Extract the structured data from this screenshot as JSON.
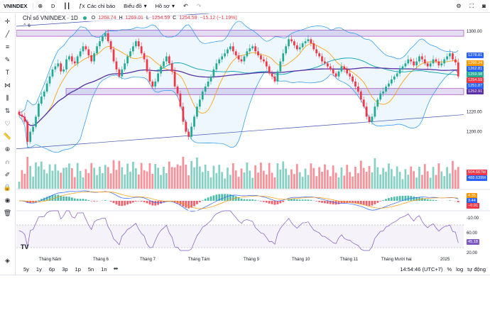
{
  "toolbar": {
    "symbol": "VNINDEX",
    "interval": "D",
    "indicators_label": "Các chỉ báo",
    "chart_type_label": "Biểu đồ",
    "profile_label": "Hồ sơ"
  },
  "legend": {
    "title": "Chỉ số VNINDEX · 1D",
    "open_label": "O",
    "open": "1268.74",
    "high_label": "H",
    "high": "1269.01",
    "low_label": "L",
    "low": "1254.59",
    "close_label": "C",
    "close": "1254.59",
    "change": "−15.12 (−1.19%)",
    "indicator_count": "6"
  },
  "price_axis": {
    "ticks": [
      "1300.00",
      "1260.00",
      "1240.00",
      "1220.00",
      "1200.00"
    ],
    "macd_ticks": [
      "-10.00"
    ],
    "rsi_ticks": [
      "60.00",
      "20.00"
    ],
    "labels": [
      {
        "text": "1278.81",
        "color": "#2962ff"
      },
      {
        "text": "1266.34",
        "color": "#ff9800"
      },
      {
        "text": "1262.81",
        "color": "#2962ff"
      },
      {
        "text": "1259.98",
        "color": "#22ab94"
      },
      {
        "text": "1254.59",
        "color": "#f23645"
      },
      {
        "text": "1251.87",
        "color": "#2962ff"
      },
      {
        "text": "1252.91",
        "color": "#5b2fa5"
      },
      {
        "text": "504.667M",
        "color": "#f23645"
      },
      {
        "text": "488.639M",
        "color": "#2962ff"
      },
      {
        "text": "4.35",
        "color": "#ff9800"
      },
      {
        "text": "3.44",
        "color": "#2962ff"
      },
      {
        "text": "−0.91",
        "color": "#f23645"
      },
      {
        "text": "45.18",
        "color": "#7e57c2"
      }
    ]
  },
  "time_axis": [
    "Tháng Năm",
    "Tháng 6",
    "Tháng 7",
    "Tháng Tám",
    "Tháng 9",
    "Tháng 10",
    "Tháng 11",
    "Tháng Mười hai",
    "2025"
  ],
  "timeframes": [
    "5y",
    "1y",
    "6p",
    "3p",
    "1p",
    "5n",
    "1n"
  ],
  "status": {
    "clock": "14:54:46 (UTC+7)",
    "percent": "%",
    "log": "log",
    "auto": "tự động"
  },
  "colors": {
    "up": "#22ab94",
    "down": "#f23645",
    "ma_orange": "#ff9800",
    "ma_teal": "#00a5b5",
    "ma_purple": "#5b2fa5",
    "band": "#2196f3",
    "zone": "#d1c4e9"
  },
  "chart_data": {
    "type": "candlestick",
    "title": "Chỉ số VNINDEX · 1D",
    "ylim": [
      1180,
      1312
    ],
    "resistance_zone": [
      1295,
      1301
    ],
    "support_zone": [
      1237,
      1243
    ],
    "closes": [
      1217,
      1215,
      1210,
      1190,
      1200,
      1205,
      1215,
      1228,
      1235,
      1240,
      1248,
      1255,
      1262,
      1265,
      1268,
      1260,
      1262,
      1272,
      1275,
      1270,
      1268,
      1275,
      1280,
      1285,
      1282,
      1276,
      1270,
      1278,
      1285,
      1290,
      1295,
      1298,
      1290,
      1282,
      1270,
      1262,
      1255,
      1262,
      1268,
      1275,
      1280,
      1285,
      1290,
      1285,
      1278,
      1272,
      1260,
      1250,
      1245,
      1250,
      1258,
      1265,
      1270,
      1275,
      1268,
      1260,
      1245,
      1238,
      1225,
      1210,
      1200,
      1195,
      1205,
      1215,
      1225,
      1232,
      1240,
      1245,
      1250,
      1255,
      1262,
      1268,
      1272,
      1275,
      1278,
      1282,
      1285,
      1280,
      1276,
      1272,
      1270,
      1275,
      1280,
      1283,
      1285,
      1280,
      1276,
      1272,
      1270,
      1265,
      1258,
      1255,
      1250,
      1260,
      1270,
      1278,
      1285,
      1292,
      1290,
      1286,
      1282,
      1284,
      1288,
      1290,
      1292,
      1288,
      1282,
      1278,
      1275,
      1270,
      1268,
      1265,
      1262,
      1258,
      1255,
      1260,
      1265,
      1262,
      1258,
      1255,
      1250,
      1245,
      1240,
      1232,
      1225,
      1215,
      1210,
      1215,
      1225,
      1232,
      1238,
      1240,
      1245,
      1248,
      1252,
      1255,
      1258,
      1262,
      1265,
      1268,
      1272,
      1270,
      1266,
      1270,
      1275,
      1272,
      1268,
      1265,
      1268,
      1272,
      1270,
      1266,
      1268,
      1272,
      1275,
      1278,
      1272,
      1269,
      1255
    ],
    "volume_labels": [
      "504.667M",
      "488.639M"
    ],
    "macd_labels": [
      "4.35",
      "3.44",
      "−0.91"
    ],
    "rsi_label": "45.18"
  }
}
